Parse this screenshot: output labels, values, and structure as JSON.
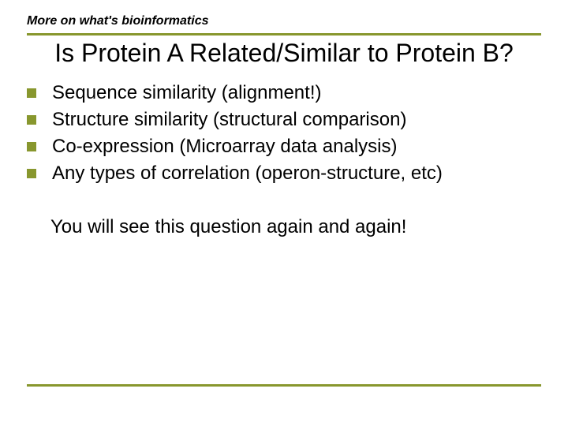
{
  "colors": {
    "rule": "#88972e",
    "bullet": "#88972e",
    "text": "#000000",
    "background": "#ffffff"
  },
  "typography": {
    "kicker_fontsize": 16,
    "title_fontsize": 32,
    "bullet_fontsize": 24,
    "closing_fontsize": 24
  },
  "kicker": "More on what's bioinformatics",
  "title": "Is Protein A Related/Similar to Protein B?",
  "bullets": [
    "Sequence similarity (alignment!)",
    "Structure similarity (structural comparison)",
    "Co-expression (Microarray data analysis)",
    "Any types of correlation (operon-structure, etc)"
  ],
  "closing": "You will see this question again and again!"
}
